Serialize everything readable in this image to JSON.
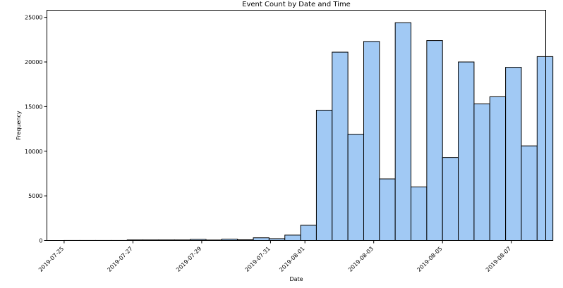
{
  "chart_data": {
    "type": "bar",
    "title": "Event Count by Date and Time",
    "xlabel": "Date",
    "ylabel": "Frequency",
    "ylim": [
      0,
      25800
    ],
    "xlim": [
      "2019-07-24T12:00",
      "2019-08-08T00:00"
    ],
    "yticks": [
      0,
      5000,
      10000,
      15000,
      20000,
      25000
    ],
    "xticks": [
      "2019-07-25",
      "2019-07-27",
      "2019-07-29",
      "2019-07-31",
      "2019-08-01",
      "2019-08-03",
      "2019-08-05",
      "2019-08-07"
    ],
    "bar_color": "#a1c9f4",
    "grid": false,
    "bins": [
      {
        "start": "2019-07-25T00:00",
        "end": "2019-07-25T11:00",
        "value": 5
      },
      {
        "start": "2019-07-25T11:00",
        "end": "2019-07-25T22:00",
        "value": 5
      },
      {
        "start": "2019-07-25T22:00",
        "end": "2019-07-26T09:00",
        "value": 5
      },
      {
        "start": "2019-07-26T09:00",
        "end": "2019-07-26T20:00",
        "value": 5
      },
      {
        "start": "2019-07-26T20:00",
        "end": "2019-07-27T07:00",
        "value": 60
      },
      {
        "start": "2019-07-27T07:00",
        "end": "2019-07-27T18:00",
        "value": 60
      },
      {
        "start": "2019-07-27T18:00",
        "end": "2019-07-28T05:00",
        "value": 60
      },
      {
        "start": "2019-07-28T05:00",
        "end": "2019-07-28T16:00",
        "value": 60
      },
      {
        "start": "2019-07-28T16:00",
        "end": "2019-07-29T03:00",
        "value": 120
      },
      {
        "start": "2019-07-29T03:00",
        "end": "2019-07-29T14:00",
        "value": 50
      },
      {
        "start": "2019-07-29T14:00",
        "end": "2019-07-30T01:00",
        "value": 150
      },
      {
        "start": "2019-07-30T01:00",
        "end": "2019-07-30T12:00",
        "value": 80
      },
      {
        "start": "2019-07-30T12:00",
        "end": "2019-07-30T23:00",
        "value": 300
      },
      {
        "start": "2019-07-30T23:00",
        "end": "2019-07-31T10:00",
        "value": 200
      },
      {
        "start": "2019-07-31T10:00",
        "end": "2019-07-31T21:00",
        "value": 600
      },
      {
        "start": "2019-07-31T21:00",
        "end": "2019-08-01T08:00",
        "value": 1700
      },
      {
        "start": "2019-08-01T08:00",
        "end": "2019-08-01T19:00",
        "value": 14600
      },
      {
        "start": "2019-08-01T19:00",
        "end": "2019-08-02T06:00",
        "value": 21100
      },
      {
        "start": "2019-08-02T06:00",
        "end": "2019-08-02T17:00",
        "value": 11900
      },
      {
        "start": "2019-08-02T17:00",
        "end": "2019-08-03T04:00",
        "value": 22300
      },
      {
        "start": "2019-08-03T04:00",
        "end": "2019-08-03T15:00",
        "value": 6900
      },
      {
        "start": "2019-08-03T15:00",
        "end": "2019-08-04T02:00",
        "value": 24400
      },
      {
        "start": "2019-08-04T02:00",
        "end": "2019-08-04T13:00",
        "value": 6000
      },
      {
        "start": "2019-08-04T13:00",
        "end": "2019-08-05T00:00",
        "value": 22400
      },
      {
        "start": "2019-08-05T00:00",
        "end": "2019-08-05T11:00",
        "value": 9300
      },
      {
        "start": "2019-08-05T11:00",
        "end": "2019-08-05T22:00",
        "value": 20000
      },
      {
        "start": "2019-08-05T22:00",
        "end": "2019-08-06T09:00",
        "value": 15300
      },
      {
        "start": "2019-08-06T09:00",
        "end": "2019-08-06T20:00",
        "value": 16100
      },
      {
        "start": "2019-08-06T20:00",
        "end": "2019-08-07T07:00",
        "value": 19400
      },
      {
        "start": "2019-08-07T07:00",
        "end": "2019-08-07T18:00",
        "value": 10600
      },
      {
        "start": "2019-08-07T18:00",
        "end": "2019-08-08T05:00",
        "value": 20600
      }
    ]
  }
}
